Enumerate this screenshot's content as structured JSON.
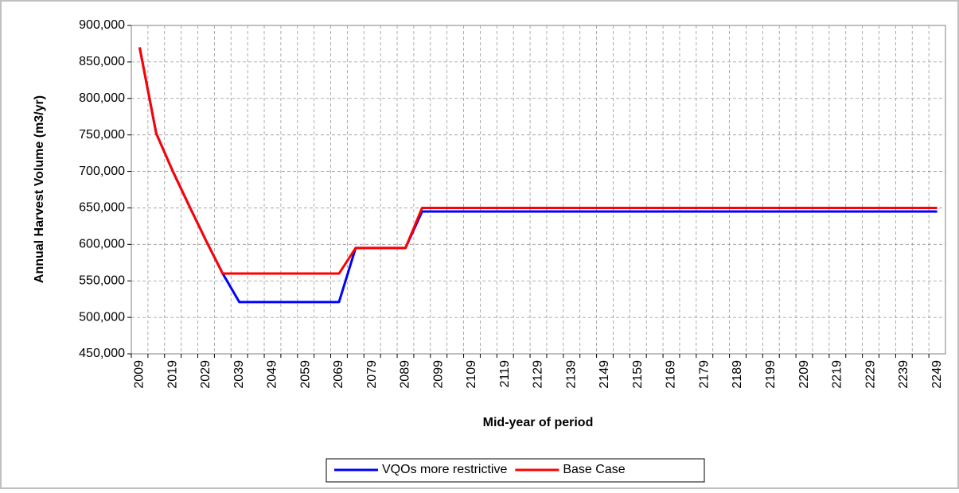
{
  "chart_data": {
    "type": "line",
    "y_label": "Annual Harvest Volume (m3/yr)",
    "x_label": "Mid-year of period",
    "categories": [
      "2009",
      null,
      "2019",
      null,
      "2029",
      null,
      "2039",
      null,
      "2049",
      null,
      "2059",
      null,
      "2069",
      null,
      "2079",
      null,
      "2089",
      null,
      "2099",
      null,
      "2109",
      null,
      "2119",
      null,
      "2129",
      null,
      "2139",
      null,
      "2149",
      null,
      "2159",
      null,
      "2169",
      null,
      "2179",
      null,
      "2189",
      null,
      "2199",
      null,
      "2209",
      null,
      "2219",
      null,
      "2229",
      null,
      "2239",
      null,
      "2249"
    ],
    "ylim": [
      450000,
      900000
    ],
    "yticks": [
      {
        "value": 450000,
        "label": "450,000"
      },
      {
        "value": 500000,
        "label": "500,000"
      },
      {
        "value": 550000,
        "label": "550,000"
      },
      {
        "value": 600000,
        "label": "600,000"
      },
      {
        "value": 650000,
        "label": "650,000"
      },
      {
        "value": 700000,
        "label": "700,000"
      },
      {
        "value": 750000,
        "label": "750,000"
      },
      {
        "value": 800000,
        "label": "800,000"
      },
      {
        "value": 850000,
        "label": "850,000"
      },
      {
        "value": 900000,
        "label": "900,000"
      }
    ],
    "grid": true,
    "legend": "bottom",
    "series": [
      {
        "name": "VQOs more restrictive",
        "color": "#0000ff",
        "values": [
          870000,
          752000,
          700000,
          652000,
          605000,
          560000,
          521000,
          521000,
          521000,
          521000,
          521000,
          521000,
          521000,
          595000,
          595000,
          595000,
          595000,
          645000,
          645000,
          645000,
          645000,
          645000,
          645000,
          645000,
          645000,
          645000,
          645000,
          645000,
          645000,
          645000,
          645000,
          645000,
          645000,
          645000,
          645000,
          645000,
          645000,
          645000,
          645000,
          645000,
          645000,
          645000,
          645000,
          645000,
          645000,
          645000,
          645000,
          645000,
          645000
        ]
      },
      {
        "name": "Base Case",
        "color": "#ff0000",
        "values": [
          870000,
          752000,
          700000,
          652000,
          605000,
          560000,
          560000,
          560000,
          560000,
          560000,
          560000,
          560000,
          560000,
          595000,
          595000,
          595000,
          595000,
          650000,
          650000,
          650000,
          650000,
          650000,
          650000,
          650000,
          650000,
          650000,
          650000,
          650000,
          650000,
          650000,
          650000,
          650000,
          650000,
          650000,
          650000,
          650000,
          650000,
          650000,
          650000,
          650000,
          650000,
          650000,
          650000,
          650000,
          650000,
          650000,
          650000,
          650000,
          650000
        ]
      }
    ]
  }
}
